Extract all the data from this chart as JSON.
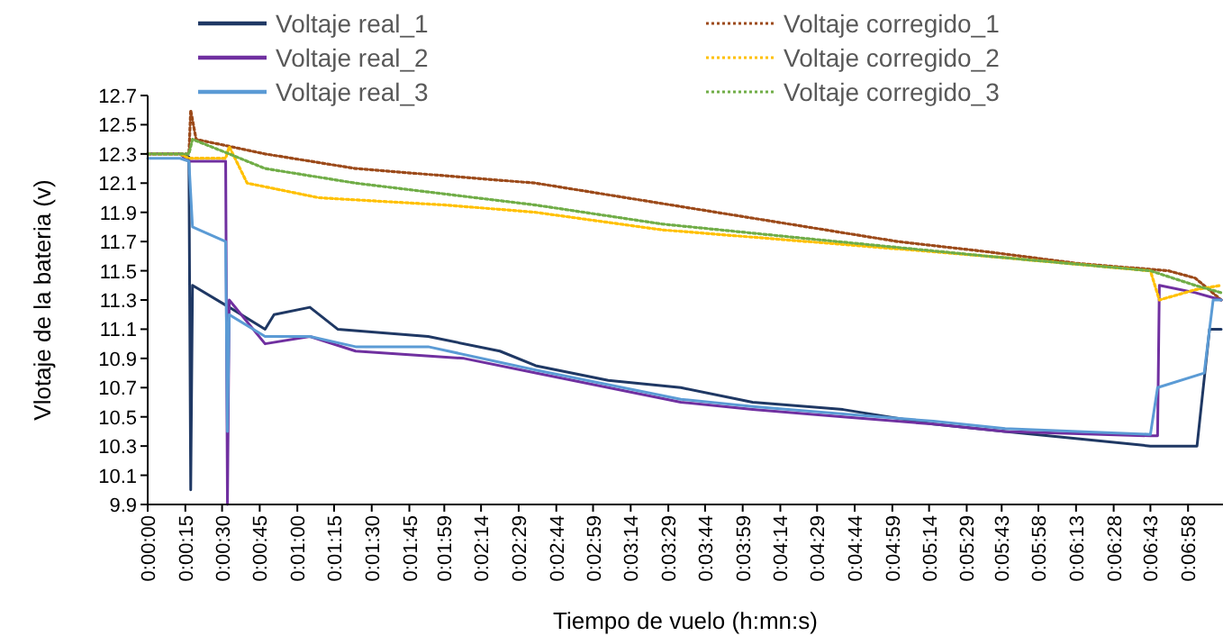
{
  "chart_data": {
    "type": "line",
    "xlabel": "Tiempo de  vuelo (h:mn:s)",
    "ylabel": "Vlotaje de la bateria (v)",
    "xlim": [
      0,
      0.12
    ],
    "ylim": [
      9.9,
      12.7
    ],
    "yticks": [
      9.9,
      10.1,
      10.3,
      10.5,
      10.7,
      10.9,
      11.1,
      11.3,
      11.5,
      11.7,
      11.9,
      12.1,
      12.3,
      12.5,
      12.7
    ],
    "xticks": [
      {
        "value": 0,
        "label": "0:00:00"
      },
      {
        "value": 0.0042,
        "label": "0:00:15"
      },
      {
        "value": 0.0083,
        "label": "0:00:30"
      },
      {
        "value": 0.0125,
        "label": "0:00:45"
      },
      {
        "value": 0.0167,
        "label": "0:01:00"
      },
      {
        "value": 0.0208,
        "label": "0:01:15"
      },
      {
        "value": 0.025,
        "label": "0:01:30"
      },
      {
        "value": 0.0292,
        "label": "0:01:45"
      },
      {
        "value": 0.0331,
        "label": "0:01:59"
      },
      {
        "value": 0.0372,
        "label": "0:02:14"
      },
      {
        "value": 0.0414,
        "label": "0:02:29"
      },
      {
        "value": 0.0456,
        "label": "0:02:44"
      },
      {
        "value": 0.0497,
        "label": "0:02:59"
      },
      {
        "value": 0.0539,
        "label": "0:03:14"
      },
      {
        "value": 0.0581,
        "label": "0:03:29"
      },
      {
        "value": 0.0622,
        "label": "0:03:44"
      },
      {
        "value": 0.0664,
        "label": "0:03:59"
      },
      {
        "value": 0.0706,
        "label": "0:04:14"
      },
      {
        "value": 0.0747,
        "label": "0:04:29"
      },
      {
        "value": 0.0789,
        "label": "0:04:44"
      },
      {
        "value": 0.0831,
        "label": "0:04:59"
      },
      {
        "value": 0.0872,
        "label": "0:05:14"
      },
      {
        "value": 0.0914,
        "label": "0:05:29"
      },
      {
        "value": 0.0953,
        "label": "0:05:43"
      },
      {
        "value": 0.0994,
        "label": "0:05:58"
      },
      {
        "value": 0.1036,
        "label": "0:06:13"
      },
      {
        "value": 0.1078,
        "label": "0:06:28"
      },
      {
        "value": 0.1119,
        "label": "0:06:43"
      },
      {
        "value": 0.1161,
        "label": "0:06:58"
      }
    ],
    "grid": false,
    "legend": "top",
    "marker": "none",
    "series": [
      {
        "name": "Voltaje real_1",
        "color": "#1f3864",
        "line_style": "solid",
        "x": [
          0,
          0.0036,
          0.0046,
          0.0048,
          0.005,
          0.0091,
          0.0131,
          0.0141,
          0.0181,
          0.0212,
          0.0313,
          0.0393,
          0.0433,
          0.0514,
          0.0595,
          0.0675,
          0.0776,
          0.0877,
          0.0957,
          0.1038,
          0.1119,
          0.1159,
          0.1171,
          0.1185,
          0.1198
        ],
        "values": [
          12.3,
          12.3,
          12.28,
          10.0,
          11.4,
          11.25,
          11.1,
          11.2,
          11.25,
          11.1,
          11.05,
          10.95,
          10.85,
          10.75,
          10.7,
          10.6,
          10.55,
          10.45,
          10.4,
          10.35,
          10.3,
          10.3,
          10.3,
          11.1,
          11.1
        ]
      },
      {
        "name": "Voltaje corregido_1",
        "color": "#9c4a1a",
        "line_style": "dotted",
        "x": [
          0,
          0.0036,
          0.0046,
          0.0048,
          0.0054,
          0.0131,
          0.0232,
          0.0433,
          0.0534,
          0.0635,
          0.0736,
          0.0837,
          0.0937,
          0.1038,
          0.1139,
          0.1169,
          0.1198
        ],
        "values": [
          12.3,
          12.3,
          12.3,
          12.6,
          12.4,
          12.3,
          12.2,
          12.1,
          12.0,
          11.9,
          11.8,
          11.7,
          11.63,
          11.55,
          11.5,
          11.45,
          11.3
        ]
      },
      {
        "name": "Voltaje real_2",
        "color": "#7030a0",
        "line_style": "solid",
        "x": [
          0,
          0.0036,
          0.0046,
          0.0087,
          0.0089,
          0.0091,
          0.0131,
          0.0181,
          0.0232,
          0.0353,
          0.0433,
          0.0514,
          0.0595,
          0.0675,
          0.0776,
          0.0877,
          0.0957,
          0.1119,
          0.1127,
          0.1129,
          0.1169,
          0.1198
        ],
        "values": [
          12.3,
          12.3,
          12.25,
          12.25,
          9.9,
          11.3,
          11.0,
          11.05,
          10.95,
          10.9,
          10.8,
          10.7,
          10.6,
          10.55,
          10.5,
          10.45,
          10.4,
          10.37,
          10.37,
          11.4,
          11.35,
          11.3
        ]
      },
      {
        "name": "Voltaje corregido_2",
        "color": "#ffc000",
        "line_style": "dotted",
        "x": [
          0,
          0.0036,
          0.0046,
          0.0087,
          0.0091,
          0.0111,
          0.0191,
          0.0333,
          0.0433,
          0.0574,
          0.0736,
          0.0937,
          0.1119,
          0.1129,
          0.1169,
          0.1198
        ],
        "values": [
          12.3,
          12.3,
          12.27,
          12.27,
          12.35,
          12.1,
          12.0,
          11.95,
          11.9,
          11.78,
          11.7,
          11.6,
          11.5,
          11.3,
          11.37,
          11.4
        ]
      },
      {
        "name": "Voltaje real_3",
        "color": "#5b9bd5",
        "line_style": "solid",
        "x": [
          0,
          0.0036,
          0.0046,
          0.005,
          0.0087,
          0.0089,
          0.0091,
          0.0131,
          0.0181,
          0.0232,
          0.0313,
          0.0433,
          0.0514,
          0.0595,
          0.0675,
          0.0776,
          0.0877,
          0.0957,
          0.1038,
          0.1119,
          0.1127,
          0.1179,
          0.1189,
          0.1198
        ],
        "values": [
          12.27,
          12.27,
          12.25,
          11.8,
          11.7,
          10.4,
          11.2,
          11.05,
          11.05,
          10.98,
          10.98,
          10.82,
          10.72,
          10.62,
          10.57,
          10.52,
          10.47,
          10.42,
          10.4,
          10.38,
          10.7,
          10.8,
          11.3,
          11.3
        ]
      },
      {
        "name": "Voltaje corregido_3",
        "color": "#70ad47",
        "line_style": "dotted",
        "x": [
          0,
          0.0036,
          0.0046,
          0.005,
          0.0091,
          0.0131,
          0.0232,
          0.0433,
          0.0574,
          0.0736,
          0.0937,
          0.1119,
          0.1169,
          0.1198
        ],
        "values": [
          12.3,
          12.3,
          12.3,
          12.4,
          12.3,
          12.2,
          12.1,
          11.95,
          11.82,
          11.72,
          11.6,
          11.5,
          11.4,
          11.35
        ]
      }
    ]
  }
}
